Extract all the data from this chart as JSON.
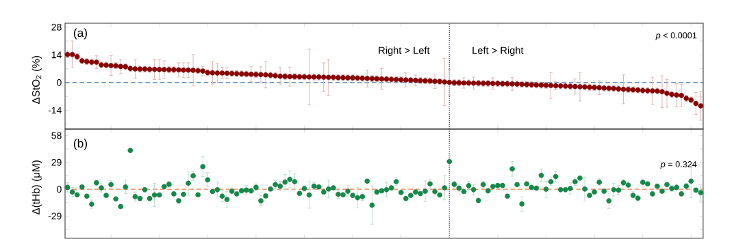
{
  "chart_data": [
    {
      "type": "scatter",
      "ylabel": "ΔStO$_{2}$ (%)",
      "color": "#8b0000",
      "tick_labels": "y",
      "annotations": [
        "(a)",
        "Right > Left",
        "Left > Right",
        "*p* < 0.0001"
      ],
      "ref_lines": [
        {
          "axis": "y",
          "value": 0,
          "color": "#3d74b8",
          "line_style": "dashed"
        }
      ],
      "ylim": [
        -23.5,
        30
      ],
      "yticks": [
        {
          "value": -21,
          "label": null
        },
        -14,
        {
          "value": -7,
          "label": null
        },
        0,
        {
          "value": 7,
          "label": null
        },
        14,
        {
          "value": 21,
          "label": null
        },
        28
      ],
      "categories": [
        null,
        null,
        null,
        null,
        null,
        null,
        null,
        null,
        null,
        null,
        null,
        null,
        null,
        null,
        null,
        null,
        null,
        null,
        null,
        null,
        null,
        null,
        null,
        null,
        null,
        null,
        null,
        null,
        null,
        null,
        null,
        null,
        null,
        null,
        null,
        null,
        null,
        null,
        null,
        null,
        null,
        null,
        null,
        null,
        null,
        null,
        null,
        null,
        null,
        null,
        null,
        null,
        null,
        null,
        null,
        null,
        null,
        null,
        null,
        null,
        null,
        null,
        null,
        null,
        null,
        null,
        null,
        null,
        null,
        null,
        null,
        null,
        null,
        null,
        null,
        null,
        null,
        null,
        null,
        null,
        null,
        null,
        null,
        null,
        null,
        null,
        null,
        null,
        null,
        null,
        null,
        null,
        null,
        null,
        null,
        null,
        null,
        null,
        null,
        null,
        null,
        null,
        null,
        null,
        null,
        null,
        null,
        null,
        null,
        null,
        null,
        null,
        null,
        null,
        null,
        null,
        null,
        null,
        null,
        null,
        null,
        null,
        null,
        null,
        null,
        null,
        null,
        null,
        null,
        null,
        null,
        null
      ],
      "values": [
        14.2,
        14.2,
        13.1,
        11.0,
        10.6,
        10.3,
        10.3,
        8.9,
        8.8,
        8.6,
        8.5,
        8.1,
        8.0,
        7.1,
        6.9,
        6.8,
        6.8,
        6.7,
        6.7,
        6.6,
        6.6,
        6.5,
        6.5,
        6.4,
        6.3,
        6.3,
        6.2,
        6.0,
        5.8,
        5.0,
        4.9,
        4.8,
        4.8,
        4.7,
        4.6,
        4.5,
        4.4,
        4.3,
        4.2,
        4.1,
        4.0,
        3.9,
        3.7,
        3.5,
        3.2,
        3.1,
        3.0,
        3.0,
        2.9,
        2.9,
        2.8,
        2.8,
        2.8,
        2.7,
        2.6,
        2.6,
        2.5,
        2.5,
        2.4,
        2.4,
        2.3,
        2.2,
        2.1,
        2.0,
        1.9,
        1.8,
        1.7,
        1.6,
        1.5,
        1.4,
        1.3,
        1.2,
        1.1,
        1.0,
        0.9,
        0.8,
        0.6,
        0.5,
        0.3,
        0.1,
        -0.1,
        -0.1,
        -0.2,
        -0.2,
        -0.3,
        -0.3,
        -0.4,
        -0.4,
        -0.5,
        -0.5,
        -0.6,
        -0.6,
        -0.7,
        -0.8,
        -0.9,
        -1.0,
        -1.1,
        -1.2,
        -1.3,
        -1.4,
        -1.5,
        -1.6,
        -1.7,
        -1.8,
        -1.9,
        -2.0,
        -2.1,
        -2.2,
        -2.4,
        -2.5,
        -2.6,
        -2.8,
        -2.9,
        -3.0,
        -3.2,
        -3.4,
        -3.5,
        -3.7,
        -3.8,
        -4.0,
        -4.1,
        -4.2,
        -4.3,
        -4.6,
        -5.4,
        -6.0,
        -6.3,
        -6.5,
        -8.0,
        -8.8,
        -10.6,
        -11.8
      ],
      "errors": [
        1.7,
        6.8,
        1.5,
        1.5,
        1.5,
        1.5,
        3.2,
        1.5,
        1.5,
        5.0,
        1.5,
        3.6,
        1.5,
        1.5,
        4.6,
        1.5,
        1.5,
        1.5,
        5.2,
        5.0,
        4.4,
        1.5,
        1.5,
        3.6,
        3.7,
        3.7,
        7.9,
        1.5,
        2.4,
        1.5,
        5.7,
        5.0,
        2.8,
        2.8,
        1.5,
        1.5,
        1.5,
        1.5,
        3.8,
        1.5,
        4.0,
        6.6,
        1.5,
        1.5,
        4.4,
        1.5,
        4.8,
        1.5,
        1.5,
        1.5,
        14.1,
        1.5,
        1.5,
        7.3,
        9.0,
        1.5,
        1.5,
        1.5,
        1.5,
        1.5,
        1.5,
        1.5,
        4.3,
        1.5,
        1.5,
        5.3,
        1.5,
        1.5,
        1.5,
        1.5,
        3.6,
        1.5,
        2.6,
        1.5,
        1.5,
        1.5,
        3.6,
        1.5,
        12.0,
        6.6,
        1.5,
        1.5,
        2.6,
        1.5,
        3.0,
        1.5,
        1.5,
        1.5,
        2.9,
        1.5,
        1.5,
        1.5,
        3.2,
        1.5,
        1.5,
        1.5,
        1.5,
        1.5,
        1.5,
        1.5,
        6.5,
        2.0,
        1.5,
        1.5,
        1.5,
        3.8,
        7.2,
        1.5,
        1.5,
        1.5,
        3.5,
        1.5,
        1.5,
        1.5,
        1.5,
        7.3,
        1.5,
        1.5,
        1.5,
        1.5,
        1.5,
        6.9,
        1.5,
        8.0,
        7.0,
        1.5,
        5.8,
        5.5,
        1.5,
        1.5,
        5.5,
        7.2
      ]
    },
    {
      "type": "scatter",
      "ylabel": "Δ(tHb) (μM)",
      "color": "#138a4a",
      "tick_labels": "y",
      "annotations": [
        "(b)",
        "*p* = 0.324"
      ],
      "ref_lines": [
        {
          "axis": "y",
          "value": 0,
          "color": "#ef7d3c",
          "line_style": "dashed"
        }
      ],
      "ylim": [
        -53,
        65
      ],
      "yticks": [
        {
          "value": -43.5,
          "label": null
        },
        -29,
        {
          "value": -14.5,
          "label": null
        },
        0,
        {
          "value": 14.5,
          "label": null
        },
        29,
        {
          "value": 43.5,
          "label": null
        },
        58
      ],
      "categories": [
        null,
        null,
        null,
        null,
        null,
        null,
        null,
        null,
        null,
        null,
        null,
        null,
        null,
        null,
        null,
        null,
        null,
        null,
        null,
        null,
        null,
        null,
        null,
        null,
        null,
        null,
        null,
        null,
        null,
        null,
        null,
        null,
        null,
        null,
        null,
        null,
        null,
        null,
        null,
        null,
        null,
        null,
        null,
        null,
        null,
        null,
        null,
        null,
        null,
        null,
        null,
        null,
        null,
        null,
        null,
        null,
        null,
        null,
        null,
        null,
        null,
        null,
        null,
        null,
        null,
        null,
        null,
        null,
        null,
        null,
        null,
        null,
        null,
        null,
        null,
        null,
        null,
        null,
        null,
        null,
        null,
        null,
        null,
        null,
        null,
        null,
        null,
        null,
        null,
        null,
        null,
        null,
        null,
        null,
        null,
        null,
        null,
        null,
        null,
        null,
        null,
        null,
        null,
        null,
        null,
        null,
        null,
        null,
        null,
        null,
        null,
        null,
        null,
        null,
        null,
        null,
        null,
        null,
        null,
        null,
        null,
        null,
        null,
        null,
        null,
        null,
        null,
        null,
        null,
        null,
        null,
        null
      ],
      "values": [
        2.0,
        -3.0,
        -6.0,
        2.5,
        -7.5,
        -16.2,
        7.0,
        1.5,
        -6.7,
        5.0,
        -10.5,
        -18.7,
        2.5,
        41.9,
        -8.0,
        -10.0,
        -0.5,
        -10.0,
        -6.2,
        -6.2,
        2.8,
        5.3,
        -5.0,
        -12.5,
        -5.5,
        6.5,
        14.5,
        -6.0,
        24.4,
        10.2,
        -2.5,
        -0.5,
        -7.5,
        -11.0,
        -2.2,
        -5.0,
        -1.7,
        -1.0,
        -1.7,
        2.0,
        -12.5,
        -7.2,
        0.2,
        5.0,
        3.3,
        7.7,
        10.7,
        8.2,
        -4.5,
        0.8,
        -6.2,
        3.3,
        2.5,
        -3.0,
        0.2,
        1.5,
        -5.5,
        -6.0,
        -2.2,
        -6.7,
        -9.2,
        -8.0,
        8.7,
        -17.2,
        -3.0,
        -1.7,
        -0.5,
        1.5,
        8.2,
        -3.5,
        -10.0,
        -6.7,
        -3.0,
        -4.7,
        -2.2,
        5.8,
        -2.5,
        -6.2,
        1.5,
        29.9,
        5.3,
        1.2,
        -2.5,
        3.8,
        -0.5,
        -12.2,
        5.0,
        -1.7,
        3.0,
        4.0,
        4.0,
        -7.5,
        22.0,
        5.0,
        -15.9,
        5.8,
        2.0,
        1.2,
        15.0,
        0.0,
        8.2,
        13.7,
        -0.5,
        -0.5,
        0.8,
        8.2,
        12.0,
        0.2,
        -6.7,
        -3.0,
        7.5,
        -2.2,
        -12.5,
        -0.5,
        -1.0,
        7.0,
        4.5,
        -6.7,
        -9.7,
        7.5,
        5.8,
        -5.0,
        3.3,
        -2.2,
        5.0,
        0.8,
        2.0,
        -5.0,
        3.3,
        8.7,
        -1.0,
        -3.7
      ],
      "errors": [
        5.0,
        5.0,
        2.0,
        2.0,
        2.0,
        4.4,
        2.7,
        4.4,
        2.0,
        4.1,
        2.0,
        2.0,
        7.3,
        2.0,
        5.0,
        2.0,
        2.5,
        2.0,
        12.6,
        2.0,
        2.0,
        3.1,
        2.0,
        2.0,
        2.0,
        13.0,
        5.0,
        2.0,
        10.6,
        7.7,
        2.0,
        8.0,
        6.2,
        8.7,
        3.7,
        2.0,
        2.5,
        5.0,
        2.5,
        3.7,
        5.6,
        2.0,
        1.5,
        4.4,
        5.2,
        8.1,
        9.2,
        8.3,
        2.0,
        2.9,
        14.3,
        3.7,
        2.1,
        2.0,
        9.6,
        2.0,
        4.5,
        2.0,
        6.0,
        2.0,
        11.0,
        4.1,
        2.0,
        20.5,
        2.0,
        2.0,
        7.7,
        2.0,
        4.4,
        2.0,
        2.0,
        2.0,
        2.0,
        2.0,
        11.2,
        4.6,
        3.7,
        2.0,
        13.0,
        6.2,
        3.1,
        3.5,
        2.0,
        4.6,
        5.4,
        2.0,
        3.4,
        2.1,
        2.0,
        2.0,
        2.0,
        2.0,
        8.0,
        2.0,
        7.8,
        2.0,
        2.0,
        2.0,
        6.6,
        8.7,
        4.2,
        5.7,
        2.0,
        2.0,
        6.0,
        4.0,
        2.0,
        13.0,
        2.0,
        2.0,
        3.7,
        2.0,
        8.3,
        6.8,
        5.0,
        3.1,
        2.0,
        4.0,
        3.1,
        2.0,
        2.0,
        2.0,
        2.0,
        2.0,
        2.0,
        3.1,
        3.5,
        2.0,
        2.9,
        17.8,
        2.0,
        9.0
      ]
    }
  ]
}
